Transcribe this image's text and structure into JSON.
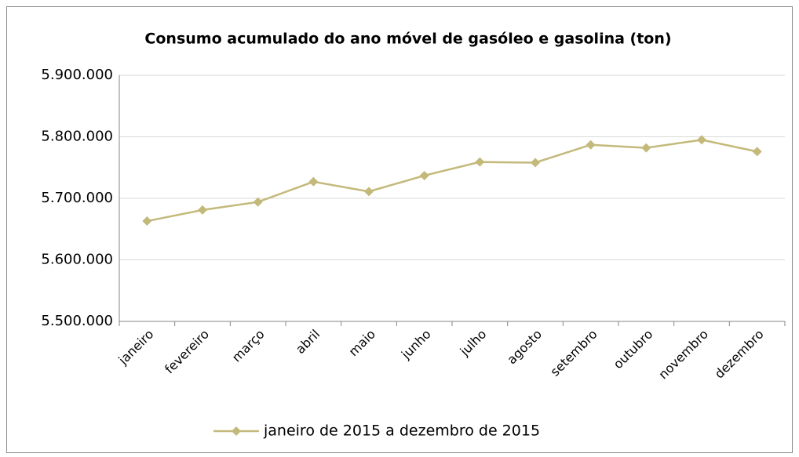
{
  "chart_data": {
    "type": "line",
    "title": "Consumo acumulado do ano móvel de gasóleo e gasolina (ton)",
    "categories": [
      "janeiro",
      "fevereiro",
      "março",
      "abril",
      "maio",
      "junho",
      "julho",
      "agosto",
      "setembro",
      "outubro",
      "novembro",
      "dezembro"
    ],
    "series": [
      {
        "name": "janeiro de 2015 a dezembro de 2015",
        "color": "#c3b97a",
        "values": [
          5663000,
          5681000,
          5694000,
          5727000,
          5711000,
          5737000,
          5759000,
          5758000,
          5787000,
          5782000,
          5795000,
          5776000
        ]
      }
    ],
    "ylim": [
      5500000,
      5900000
    ],
    "yticks": [
      {
        "value": 5500000,
        "label": "5.500.000"
      },
      {
        "value": 5600000,
        "label": "5.600.000"
      },
      {
        "value": 5700000,
        "label": "5.700.000"
      },
      {
        "value": 5800000,
        "label": "5.800.000"
      },
      {
        "value": 5900000,
        "label": "5.900.000"
      }
    ],
    "grid": true,
    "legend": "bottom"
  }
}
